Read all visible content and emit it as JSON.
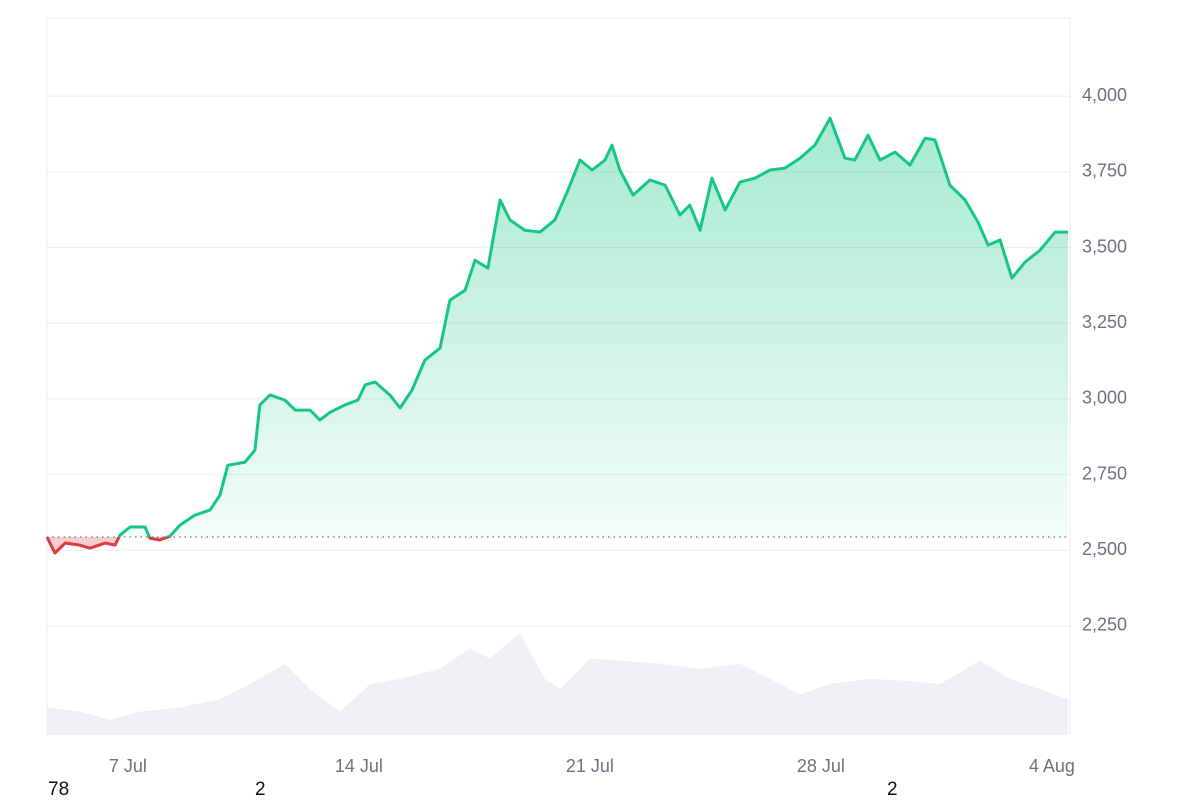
{
  "chart_data": {
    "type": "line",
    "x": [
      4.55,
      4.79,
      5.1,
      5.55,
      5.85,
      6.31,
      6.61,
      6.76,
      7.07,
      7.52,
      7.67,
      7.97,
      8.28,
      8.58,
      9.03,
      9.49,
      9.79,
      10.03,
      10.55,
      10.85,
      11.0,
      11.31,
      11.76,
      12.07,
      12.52,
      12.82,
      13.13,
      13.58,
      13.97,
      14.19,
      14.49,
      14.94,
      15.25,
      15.61,
      16.0,
      16.46,
      16.76,
      17.22,
      17.52,
      17.91,
      18.28,
      18.58,
      19.03,
      19.49,
      19.94,
      20.34,
      20.7,
      21.07,
      21.46,
      21.67,
      21.91,
      22.31,
      22.82,
      23.28,
      23.73,
      24.03,
      24.34,
      24.7,
      25.1,
      25.55,
      26.0,
      26.46,
      26.91,
      27.37,
      27.82,
      28.28,
      28.73,
      29.03,
      29.43,
      29.79,
      30.25,
      30.7,
      31.16,
      31.46,
      31.91,
      32.37,
      32.76,
      33.07,
      33.43,
      33.79,
      34.19,
      34.64,
      35.1,
      35.49
    ],
    "series": [
      {
        "color": "#16c784",
        "below_color": "#e03a3e",
        "values": [
          2544,
          2491,
          2524,
          2517,
          2507,
          2524,
          2517,
          2550,
          2577,
          2577,
          2540,
          2534,
          2547,
          2583,
          2616,
          2633,
          2682,
          2781,
          2791,
          2831,
          2980,
          3013,
          2996,
          2963,
          2963,
          2930,
          2956,
          2980,
          2996,
          3046,
          3056,
          3013,
          2970,
          3029,
          3128,
          3168,
          3326,
          3359,
          3458,
          3432,
          3657,
          3591,
          3557,
          3551,
          3591,
          3690,
          3789,
          3756,
          3789,
          3838,
          3756,
          3673,
          3723,
          3706,
          3607,
          3640,
          3557,
          3729,
          3624,
          3716,
          3729,
          3756,
          3762,
          3795,
          3838,
          3927,
          3795,
          3789,
          3871,
          3789,
          3815,
          3772,
          3861,
          3855,
          3706,
          3657,
          3584,
          3508,
          3525,
          3399,
          3452,
          3491,
          3551,
          3551
        ]
      }
    ],
    "baseline": 2544,
    "volume": {
      "color": "#eef0f3",
      "x": [
        4.55,
        5.55,
        6.46,
        7.37,
        8.58,
        9.79,
        10.7,
        11.76,
        12.52,
        13.43,
        14.34,
        15.25,
        16.46,
        17.37,
        17.97,
        18.88,
        19.64,
        20.1,
        21.01,
        21.91,
        23.13,
        24.34,
        25.55,
        26.46,
        27.37,
        28.28,
        29.49,
        30.7,
        31.61,
        32.82,
        33.73,
        34.64,
        35.49
      ],
      "values": [
        27,
        23,
        15,
        23,
        27,
        35,
        50,
        70,
        45,
        23,
        50,
        55,
        65,
        85,
        75,
        100,
        55,
        45,
        75,
        73,
        70,
        65,
        70,
        55,
        40,
        50,
        55,
        53,
        50,
        73,
        55,
        45,
        35
      ],
      "vlim": [
        0,
        100
      ]
    },
    "xlim": [
      4.55,
      35.55
    ],
    "xticks": [
      {
        "value": 7,
        "label": "7 Jul"
      },
      {
        "value": 14,
        "label": "14 Jul"
      },
      {
        "value": 21,
        "label": "21 Jul"
      },
      {
        "value": 28,
        "label": "28 Jul"
      },
      {
        "value": 35,
        "label": "4 Aug"
      }
    ],
    "ylim": [
      1890,
      4258
    ],
    "yticks": [
      {
        "value": 2250,
        "label": "2,250"
      },
      {
        "value": 2500,
        "label": "2,500"
      },
      {
        "value": 2750,
        "label": "2,750"
      },
      {
        "value": 3000,
        "label": "3,000"
      },
      {
        "value": 3250,
        "label": "3,250"
      },
      {
        "value": 3500,
        "label": "3,500"
      },
      {
        "value": 3750,
        "label": "3,750"
      },
      {
        "value": 4000,
        "label": "4,000"
      }
    ],
    "grid": true,
    "footer_labels": [
      "78",
      "2",
      "2"
    ]
  }
}
